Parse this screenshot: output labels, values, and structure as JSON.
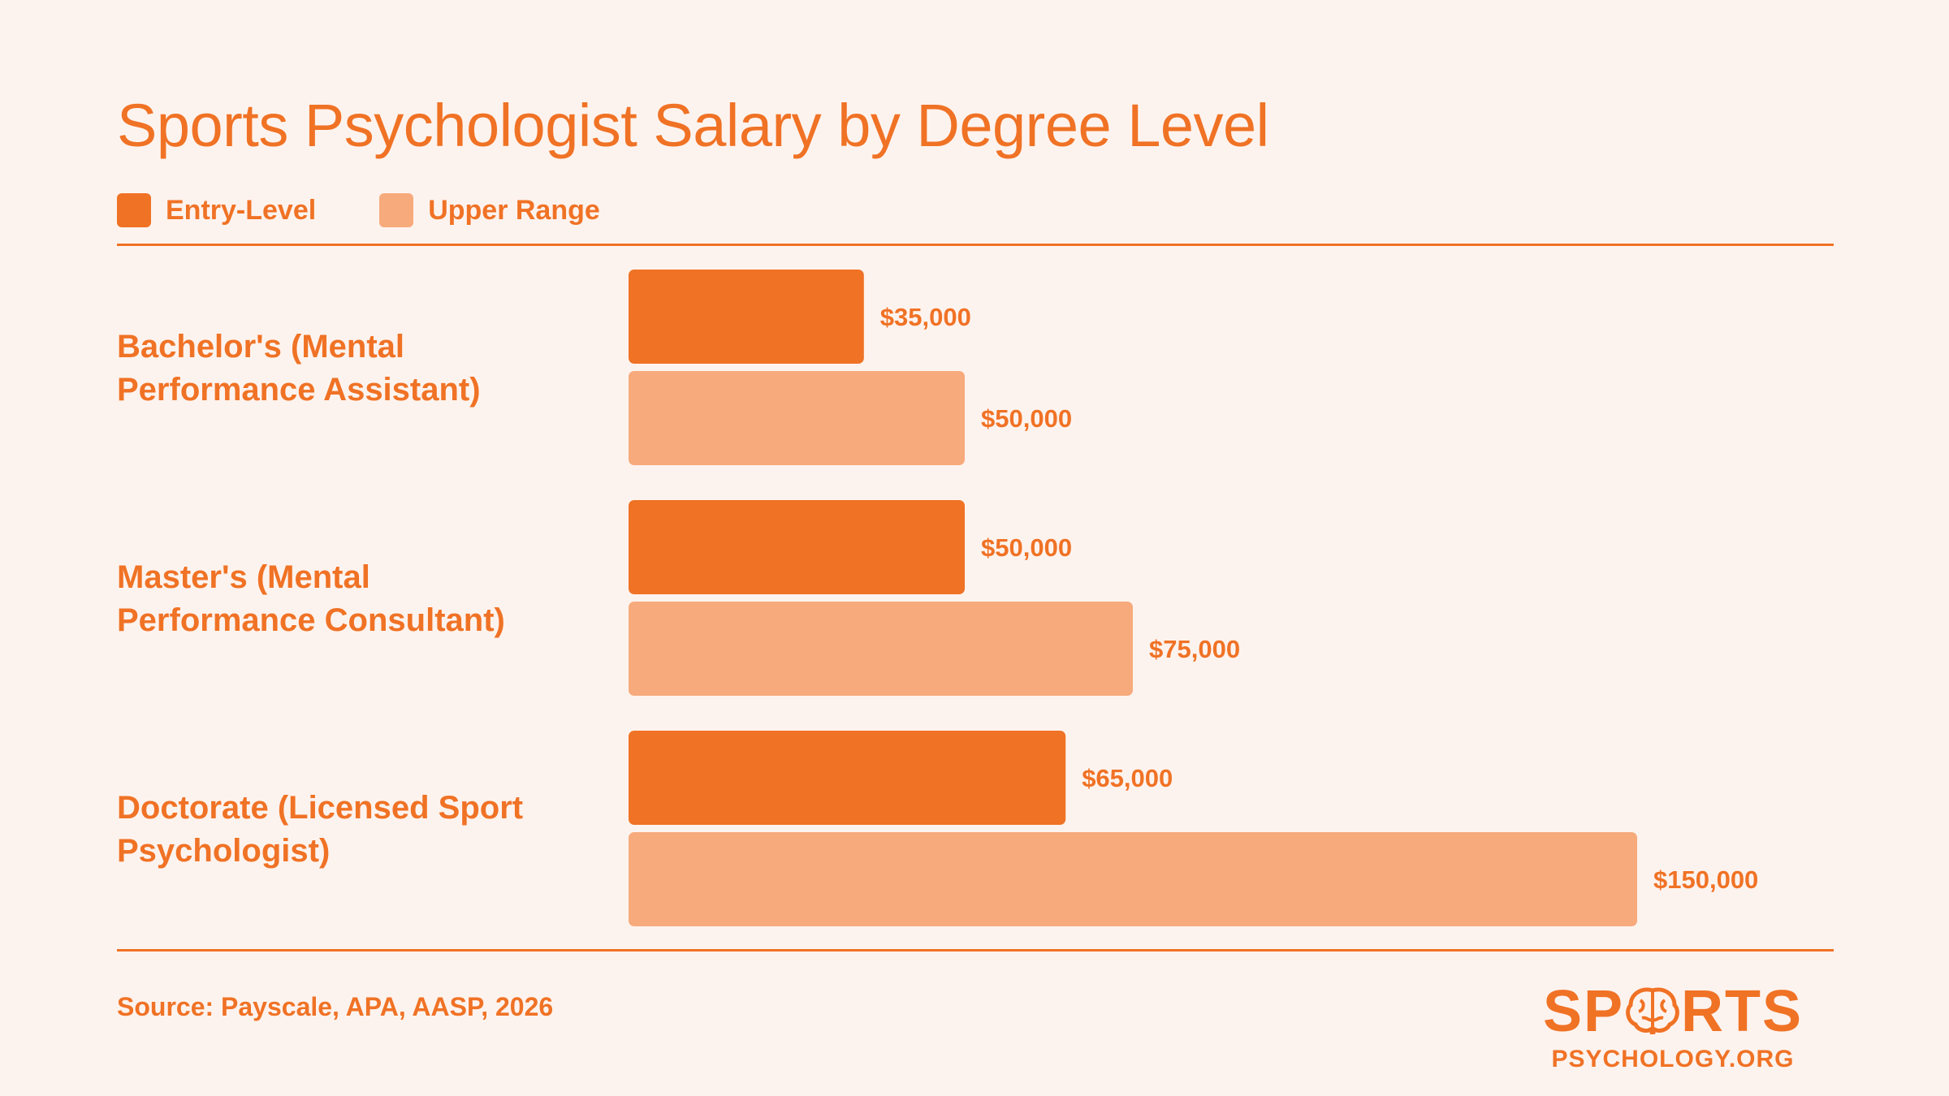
{
  "title": "Sports Psychologist Salary by Degree Level",
  "legend": [
    {
      "label": "Entry-Level",
      "color": "#f07225"
    },
    {
      "label": "Upper Range",
      "color": "#f7aa7c"
    }
  ],
  "source": "Source: Payscale, APA, AASP, 2026",
  "logo": {
    "top": "SPORTS",
    "bottom": "PSYCHOLOGY.ORG"
  },
  "chart_data": {
    "type": "bar",
    "orientation": "horizontal",
    "categories": [
      [
        "Bachelor's (Mental",
        "Performance Assistant)"
      ],
      [
        "Master's (Mental",
        "Performance Consultant)"
      ],
      [
        "Doctorate (Licensed Sport",
        "Psychologist)"
      ]
    ],
    "series": [
      {
        "name": "Entry-Level",
        "values": [
          35000,
          50000,
          65000
        ],
        "labels": [
          "$35,000",
          "$50,000",
          "$65,000"
        ],
        "color": "#f07225"
      },
      {
        "name": "Upper Range",
        "values": [
          50000,
          75000,
          150000
        ],
        "labels": [
          "$50,000",
          "$75,000",
          "$150,000"
        ],
        "color": "#f7aa7c"
      }
    ],
    "xlim": [
      0,
      150000
    ],
    "grid": false,
    "legend_position": "top-left"
  }
}
